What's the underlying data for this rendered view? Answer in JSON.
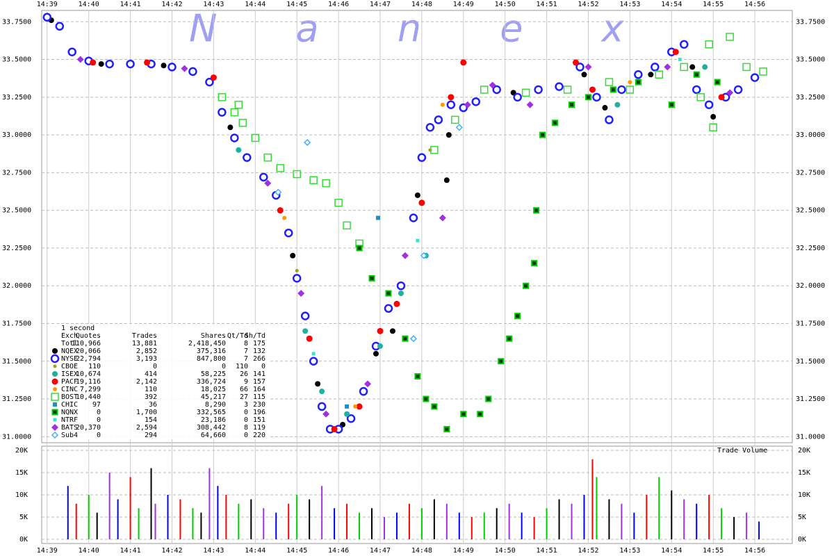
{
  "chart_data": {
    "type": "scatter",
    "watermark": "N a n e x",
    "xlim": [
      38.87,
      56.9
    ],
    "xticks": [
      {
        "value": 39,
        "label": "14:39"
      },
      {
        "value": 40,
        "label": "14:40"
      },
      {
        "value": 41,
        "label": "14:41"
      },
      {
        "value": 42,
        "label": "14:42"
      },
      {
        "value": 43,
        "label": "14:43"
      },
      {
        "value": 44,
        "label": "14:44"
      },
      {
        "value": 45,
        "label": "14:45"
      },
      {
        "value": 46,
        "label": "14:46"
      },
      {
        "value": 47,
        "label": "14:47"
      },
      {
        "value": 48,
        "label": "14:48"
      },
      {
        "value": 49,
        "label": "14:49"
      },
      {
        "value": 50,
        "label": "14:50"
      },
      {
        "value": 51,
        "label": "14:51"
      },
      {
        "value": 52,
        "label": "14:52"
      },
      {
        "value": 53,
        "label": "14:53"
      },
      {
        "value": 54,
        "label": "14:54"
      },
      {
        "value": 55,
        "label": "14:55"
      },
      {
        "value": 56,
        "label": "14:56"
      }
    ],
    "ylim": [
      30.96,
      33.825
    ],
    "yticks": [
      {
        "value": 31,
        "label": "31.0000"
      },
      {
        "value": 31.25,
        "label": "31.2500"
      },
      {
        "value": 31.5,
        "label": "31.5000"
      },
      {
        "value": 31.75,
        "label": "31.7500"
      },
      {
        "value": 32,
        "label": "32.0000"
      },
      {
        "value": 32.25,
        "label": "32.2500"
      },
      {
        "value": 32.5,
        "label": "32.5000"
      },
      {
        "value": 32.75,
        "label": "32.7500"
      },
      {
        "value": 33,
        "label": "33.0000"
      },
      {
        "value": 33.25,
        "label": "33.2500"
      },
      {
        "value": 33.5,
        "label": "33.5000"
      },
      {
        "value": 33.75,
        "label": "33.7500"
      }
    ],
    "grid": true,
    "table": {
      "title": "1 second",
      "columns": [
        "Exch",
        "Quotes",
        "Trades",
        "Shares",
        "Qt/Td",
        "Sh/Td"
      ],
      "total": [
        "Totl",
        "110,966",
        "13,881",
        "2,418,450",
        "8",
        "175"
      ]
    },
    "series": [
      {
        "name": "NQEX",
        "color": "#000000",
        "marker": "circle",
        "size": 4,
        "stats": [
          "20,066",
          "2,852",
          "375,316",
          "7",
          "132"
        ],
        "x": [
          39.1,
          40.3,
          41.8,
          43.4,
          44.9,
          45.5,
          46.1,
          46.9,
          47.3,
          47.9,
          48.6,
          48.65,
          50.2,
          51.9,
          52.4,
          53.5,
          54.5,
          55.0
        ],
        "values": [
          33.76,
          33.47,
          33.46,
          33.05,
          32.2,
          31.35,
          31.08,
          31.55,
          31.7,
          32.6,
          32.7,
          33.0,
          33.28,
          33.4,
          33.18,
          33.4,
          33.45,
          33.12
        ]
      },
      {
        "name": "NYSE",
        "color": "#2020ff",
        "marker": "ring",
        "size": 5,
        "stats": [
          "22,794",
          "3,193",
          "847,800",
          "7",
          "266"
        ],
        "x": [
          39.0,
          39.3,
          39.6,
          40.0,
          40.5,
          41.0,
          41.5,
          42.0,
          42.5,
          42.9,
          43.2,
          43.5,
          43.8,
          44.2,
          44.5,
          44.8,
          45.0,
          45.2,
          45.4,
          45.6,
          45.8,
          46.0,
          46.3,
          46.6,
          46.9,
          47.2,
          47.5,
          47.8,
          48.0,
          48.2,
          48.4,
          48.7,
          49.0,
          49.3,
          49.8,
          50.3,
          50.8,
          51.3,
          51.8,
          52.2,
          52.5,
          52.8,
          53.2,
          53.6,
          54.0,
          54.3,
          54.6,
          54.9,
          55.3,
          55.6,
          56.0
        ],
        "values": [
          33.78,
          33.72,
          33.55,
          33.49,
          33.47,
          33.47,
          33.47,
          33.45,
          33.42,
          33.35,
          33.15,
          32.98,
          32.85,
          32.72,
          32.6,
          32.35,
          32.05,
          31.8,
          31.5,
          31.2,
          31.05,
          31.05,
          31.12,
          31.3,
          31.6,
          31.85,
          32.0,
          32.45,
          32.85,
          33.05,
          33.1,
          33.2,
          33.18,
          33.22,
          33.3,
          33.25,
          33.3,
          33.32,
          33.45,
          33.25,
          33.1,
          33.3,
          33.4,
          33.45,
          33.55,
          33.6,
          33.3,
          33.2,
          33.25,
          33.3,
          33.38
        ]
      },
      {
        "name": "CBOE",
        "color": "#a0a020",
        "marker": "circle",
        "size": 2.5,
        "stats": [
          "110",
          "0",
          "0",
          "110",
          "0"
        ],
        "x": [
          45.0,
          48.2
        ],
        "values": [
          32.1,
          32.9
        ]
      },
      {
        "name": "ISEX",
        "color": "#20b0a0",
        "marker": "circle",
        "size": 4,
        "stats": [
          "10,674",
          "414",
          "58,225",
          "26",
          "141"
        ],
        "x": [
          43.6,
          45.2,
          45.6,
          46.2,
          47.0,
          47.5,
          48.1,
          52.7,
          54.8
        ],
        "values": [
          32.9,
          31.7,
          31.3,
          31.15,
          31.6,
          31.95,
          32.2,
          33.2,
          33.45
        ]
      },
      {
        "name": "PACF",
        "color": "#ff0000",
        "marker": "circle",
        "size": 4.5,
        "stats": [
          "19,116",
          "2,142",
          "336,724",
          "9",
          "157"
        ],
        "x": [
          40.1,
          41.4,
          43.0,
          44.6,
          45.3,
          45.9,
          46.5,
          47.0,
          47.4,
          48.0,
          48.7,
          49.0,
          51.7,
          52.1,
          54.1,
          55.2
        ],
        "values": [
          33.48,
          33.48,
          33.38,
          32.5,
          31.65,
          31.05,
          31.2,
          31.7,
          31.88,
          32.55,
          33.25,
          33.48,
          33.48,
          33.3,
          33.55,
          33.25
        ]
      },
      {
        "name": "CINC",
        "color": "#ff9900",
        "marker": "circle",
        "size": 3,
        "stats": [
          "7,299",
          "110",
          "18,025",
          "66",
          "164"
        ],
        "x": [
          44.7,
          46.4,
          48.5,
          53.0
        ],
        "values": [
          32.45,
          31.2,
          33.2,
          33.35
        ]
      },
      {
        "name": "BOST",
        "color": "#33dd33",
        "marker": "square-hollow",
        "size": 5,
        "stats": [
          "10,440",
          "392",
          "45,217",
          "27",
          "115"
        ],
        "x": [
          43.2,
          43.5,
          43.6,
          43.7,
          44.0,
          44.3,
          44.6,
          45.0,
          45.4,
          45.7,
          46.0,
          46.2,
          46.5,
          48.3,
          48.8,
          49.5,
          50.5,
          51.5,
          52.5,
          53.0,
          53.7,
          54.3,
          54.7,
          54.9,
          55.0,
          55.4,
          55.8,
          56.2
        ],
        "values": [
          33.25,
          33.15,
          33.2,
          33.08,
          32.98,
          32.85,
          32.78,
          32.74,
          32.7,
          32.68,
          32.55,
          32.4,
          32.28,
          32.9,
          33.1,
          33.3,
          33.28,
          33.3,
          33.35,
          33.3,
          33.4,
          33.45,
          33.25,
          33.6,
          33.05,
          33.65,
          33.45,
          33.42
        ]
      },
      {
        "name": "CHIC",
        "color": "#2090c0",
        "marker": "square",
        "size": 3,
        "stats": [
          "97",
          "36",
          "8,290",
          "3",
          "230"
        ],
        "x": [
          46.95,
          46.2
        ],
        "values": [
          32.45,
          31.2
        ]
      },
      {
        "name": "NQNX",
        "color": "#00cc00",
        "marker": "square",
        "marker_fill": "#0a3a0a",
        "size": 3.5,
        "stats": [
          "0",
          "1,700",
          "332,565",
          "0",
          "196"
        ],
        "x": [
          46.5,
          46.8,
          47.2,
          47.6,
          47.9,
          48.1,
          48.3,
          48.6,
          49.0,
          49.4,
          49.6,
          49.9,
          50.1,
          50.3,
          50.5,
          50.7,
          50.75,
          50.9,
          51.2,
          51.6,
          52.0,
          52.6,
          53.2,
          54.0,
          54.6,
          55.1
        ],
        "values": [
          32.25,
          32.05,
          31.95,
          31.65,
          31.4,
          31.25,
          31.2,
          31.05,
          31.15,
          31.15,
          31.25,
          31.5,
          31.65,
          31.8,
          32.0,
          32.15,
          32.5,
          33.0,
          33.08,
          33.2,
          33.25,
          33.3,
          33.35,
          33.2,
          33.4,
          33.35
        ]
      },
      {
        "name": "NTRF",
        "color": "#40e0d0",
        "marker": "square",
        "size": 2.5,
        "stats": [
          "0",
          "154",
          "23,186",
          "0",
          "151"
        ],
        "x": [
          45.4,
          47.9,
          54.2
        ],
        "values": [
          31.55,
          32.3,
          33.5
        ]
      },
      {
        "name": "BATS",
        "color": "#a030e0",
        "marker": "diamond",
        "size": 5,
        "stats": [
          "20,370",
          "2,594",
          "308,442",
          "8",
          "119"
        ],
        "x": [
          39.8,
          42.3,
          44.3,
          45.1,
          45.7,
          46.7,
          47.6,
          48.5,
          49.1,
          49.7,
          50.6,
          52.0,
          53.9,
          55.4
        ],
        "values": [
          33.5,
          33.44,
          32.68,
          31.95,
          31.15,
          31.35,
          32.2,
          32.45,
          33.2,
          33.33,
          33.2,
          33.45,
          33.45,
          33.28
        ]
      },
      {
        "name": "Sub4",
        "color": "#40b0ff",
        "marker": "diamond-hollow",
        "size": 4,
        "stats": [
          "0",
          "294",
          "64,660",
          "0",
          "220"
        ],
        "x": [
          45.25,
          44.55,
          47.8,
          48.9,
          48.05
        ],
        "values": [
          32.95,
          32.62,
          31.65,
          33.05,
          32.2
        ]
      }
    ],
    "volume": {
      "title": "Trade Volume",
      "ylim": [
        -940,
        20940
      ],
      "yticks": [
        {
          "value": 0,
          "label": "0K"
        },
        {
          "value": 5000,
          "label": "5K"
        },
        {
          "value": 10000,
          "label": "10K"
        },
        {
          "value": 15000,
          "label": "15K"
        },
        {
          "value": 20000,
          "label": "20K"
        }
      ],
      "colors": [
        "#0000ff",
        "#ff0000",
        "#00cc00",
        "#000000",
        "#a030e0"
      ],
      "x": [
        39.5,
        39.7,
        40.0,
        40.2,
        40.5,
        40.7,
        41.0,
        41.2,
        41.5,
        41.6,
        41.9,
        42.2,
        42.5,
        42.7,
        42.9,
        43.1,
        43.3,
        43.6,
        43.9,
        44.2,
        44.5,
        44.8,
        45.0,
        45.3,
        45.6,
        45.9,
        46.2,
        46.5,
        46.8,
        47.1,
        47.4,
        47.7,
        48.0,
        48.3,
        48.6,
        48.9,
        49.2,
        49.5,
        49.8,
        50.1,
        50.4,
        50.7,
        51.0,
        51.3,
        51.6,
        51.9,
        52.1,
        52.2,
        52.5,
        52.8,
        53.1,
        53.4,
        53.7,
        54.0,
        54.3,
        54.6,
        54.9,
        55.2,
        55.5,
        55.8,
        56.1
      ],
      "values": [
        12000,
        8000,
        10000,
        6000,
        15000,
        9000,
        14000,
        7000,
        16000,
        8000,
        10000,
        9000,
        7000,
        6000,
        16000,
        12000,
        10000,
        8000,
        9000,
        7000,
        6000,
        8000,
        10000,
        9000,
        12000,
        7000,
        8000,
        6000,
        7000,
        5000,
        6000,
        8000,
        7000,
        9000,
        8000,
        6000,
        5000,
        6000,
        7000,
        8000,
        6000,
        5000,
        7000,
        9000,
        8000,
        10000,
        18000,
        14000,
        9000,
        8000,
        6000,
        10000,
        14000,
        11000,
        9000,
        8000,
        10000,
        7000,
        5000,
        6000,
        4000
      ]
    }
  }
}
